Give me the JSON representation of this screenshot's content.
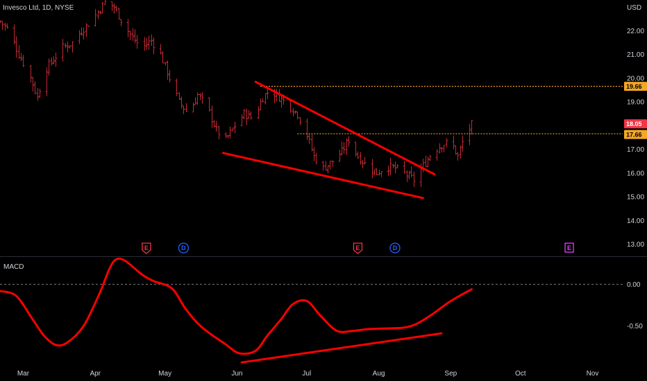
{
  "header": {
    "symbol_title": "Invesco Ltd, 1D, NYSE",
    "currency": "USD"
  },
  "colors": {
    "background": "#000000",
    "bar": "#c42a35",
    "trendline": "#ff0000",
    "level_line": "#f5a623",
    "last_price_tag": "#f23645",
    "level_tag": "#f5a623",
    "axis_text": "#d1d4dc",
    "earnings": "#f23645",
    "dividend": "#2962ff",
    "earnings_future": "#e040fb"
  },
  "levels": {
    "resistance": "19.66",
    "support": "17.66",
    "last_price": "18.05"
  },
  "events": [
    {
      "letter": "E",
      "kind": "earnings",
      "date": "2024-04-23"
    },
    {
      "letter": "D",
      "kind": "dividend",
      "date": "2024-05-09"
    },
    {
      "letter": "E",
      "kind": "earnings",
      "date": "2024-07-23"
    },
    {
      "letter": "D",
      "kind": "dividend",
      "date": "2024-08-08"
    },
    {
      "letter": "E",
      "kind": "earnings_future",
      "date": "2024-10-22"
    }
  ],
  "macd_label": "MACD",
  "chart_data": [
    {
      "type": "ohlc",
      "title": "Invesco Ltd, 1D, NYSE",
      "ylabel": "USD",
      "y_ticks": [
        "13.00",
        "14.00",
        "15.00",
        "16.00",
        "17.00",
        "18.00",
        "19.00",
        "20.00",
        "21.00",
        "22.00",
        "USD"
      ],
      "ylim": [
        12.55,
        23.3
      ],
      "x_ticks": [
        "Mar",
        "Apr",
        "May",
        "Jun",
        "Jul",
        "Aug",
        "Sep",
        "Oct",
        "Nov"
      ],
      "xlim": [
        "2024-02-20",
        "2024-11-14"
      ],
      "close_path": [
        [
          "2024-02-20",
          22.4
        ],
        [
          "2024-02-24",
          22.0
        ],
        [
          "2024-02-28",
          21.0
        ],
        [
          "2024-03-03",
          20.3
        ],
        [
          "2024-03-07",
          19.2
        ],
        [
          "2024-03-10",
          20.3
        ],
        [
          "2024-03-14",
          20.8
        ],
        [
          "2024-03-18",
          21.3
        ],
        [
          "2024-03-22",
          21.5
        ],
        [
          "2024-03-26",
          22.0
        ],
        [
          "2024-03-30",
          22.4
        ],
        [
          "2024-04-02",
          22.8
        ],
        [
          "2024-04-05",
          23.2
        ],
        [
          "2024-04-09",
          23.0
        ],
        [
          "2024-04-13",
          22.3
        ],
        [
          "2024-04-17",
          21.7
        ],
        [
          "2024-04-21",
          21.3
        ],
        [
          "2024-04-25",
          21.6
        ],
        [
          "2024-04-29",
          21.0
        ],
        [
          "2024-05-03",
          20.0
        ],
        [
          "2024-05-07",
          19.0
        ],
        [
          "2024-05-11",
          18.5
        ],
        [
          "2024-05-15",
          19.3
        ],
        [
          "2024-05-19",
          18.8
        ],
        [
          "2024-05-23",
          17.8
        ],
        [
          "2024-05-27",
          17.4
        ],
        [
          "2024-05-31",
          18.0
        ],
        [
          "2024-06-04",
          18.5
        ],
        [
          "2024-06-08",
          18.3
        ],
        [
          "2024-06-12",
          19.2
        ],
        [
          "2024-06-15",
          19.5
        ],
        [
          "2024-06-19",
          19.2
        ],
        [
          "2024-06-23",
          18.9
        ],
        [
          "2024-06-27",
          18.5
        ],
        [
          "2024-07-01",
          17.6
        ],
        [
          "2024-07-04",
          16.7
        ],
        [
          "2024-07-08",
          16.2
        ],
        [
          "2024-07-12",
          16.5
        ],
        [
          "2024-07-16",
          16.9
        ],
        [
          "2024-07-19",
          17.4
        ],
        [
          "2024-07-23",
          16.7
        ],
        [
          "2024-07-27",
          16.3
        ],
        [
          "2024-07-31",
          16.0
        ],
        [
          "2024-08-04",
          16.3
        ],
        [
          "2024-08-08",
          16.2
        ],
        [
          "2024-08-12",
          16.0
        ],
        [
          "2024-08-16",
          15.7
        ],
        [
          "2024-08-20",
          16.3
        ],
        [
          "2024-08-24",
          16.9
        ],
        [
          "2024-08-28",
          17.2
        ],
        [
          "2024-09-01",
          17.3
        ],
        [
          "2024-09-04",
          16.7
        ],
        [
          "2024-09-07",
          17.6
        ],
        [
          "2024-09-10",
          18.05
        ]
      ],
      "ohlc_note": "daily OHLC bars sampled along close_path",
      "annotations": {
        "trendlines": [
          {
            "from": [
              "2024-06-09",
              19.85
            ],
            "to": [
              "2024-08-25",
              15.95
            ]
          },
          {
            "from": [
              "2024-05-26",
              16.85
            ],
            "to": [
              "2024-08-20",
              14.95
            ]
          }
        ],
        "horizontal_levels": [
          19.66,
          17.66
        ],
        "last_price": 18.05
      }
    },
    {
      "type": "line",
      "title": "MACD",
      "y_ticks": [
        "0.00",
        "-0.50"
      ],
      "ylim": [
        -0.98,
        0.32
      ],
      "zero_line": "dashed",
      "series": [
        {
          "values_by_date": [
            [
              "2024-02-20",
              -0.08
            ],
            [
              "2024-02-27",
              -0.14
            ],
            [
              "2024-03-05",
              -0.42
            ],
            [
              "2024-03-10",
              -0.62
            ],
            [
              "2024-03-15",
              -0.73
            ],
            [
              "2024-03-20",
              -0.7
            ],
            [
              "2024-03-27",
              -0.5
            ],
            [
              "2024-04-03",
              -0.1
            ],
            [
              "2024-04-07",
              0.18
            ],
            [
              "2024-04-10",
              0.3
            ],
            [
              "2024-04-14",
              0.28
            ],
            [
              "2024-04-21",
              0.12
            ],
            [
              "2024-04-26",
              0.04
            ],
            [
              "2024-05-04",
              -0.05
            ],
            [
              "2024-05-10",
              -0.3
            ],
            [
              "2024-05-17",
              -0.52
            ],
            [
              "2024-05-27",
              -0.72
            ],
            [
              "2024-06-02",
              -0.83
            ],
            [
              "2024-06-09",
              -0.8
            ],
            [
              "2024-06-14",
              -0.62
            ],
            [
              "2024-06-20",
              -0.42
            ],
            [
              "2024-06-25",
              -0.24
            ],
            [
              "2024-07-01",
              -0.2
            ],
            [
              "2024-07-07",
              -0.38
            ],
            [
              "2024-07-14",
              -0.56
            ],
            [
              "2024-07-21",
              -0.56
            ],
            [
              "2024-07-27",
              -0.54
            ],
            [
              "2024-08-05",
              -0.53
            ],
            [
              "2024-08-12",
              -0.52
            ],
            [
              "2024-08-17",
              -0.48
            ],
            [
              "2024-08-23",
              -0.38
            ],
            [
              "2024-08-31",
              -0.22
            ],
            [
              "2024-09-06",
              -0.12
            ],
            [
              "2024-09-10",
              -0.06
            ]
          ]
        }
      ],
      "annotations": {
        "trendline": {
          "from": [
            "2024-06-03",
            -0.94
          ],
          "to": [
            "2024-08-28",
            -0.59
          ]
        }
      }
    }
  ]
}
